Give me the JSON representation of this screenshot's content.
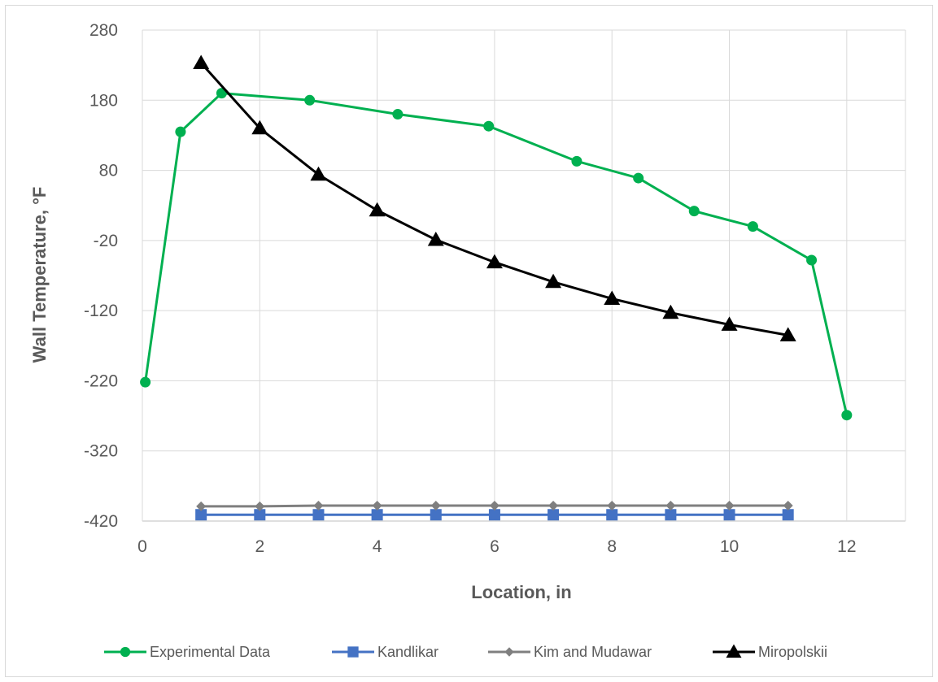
{
  "chart_data": {
    "type": "line",
    "title": "",
    "xlabel": "Location, in",
    "ylabel": "Wall Temperature, °F",
    "xlim": [
      0,
      13
    ],
    "ylim": [
      -420,
      280
    ],
    "x_ticks": [
      0,
      2,
      4,
      6,
      8,
      10,
      12
    ],
    "y_ticks": [
      -420,
      -320,
      -220,
      -120,
      -20,
      80,
      180,
      280
    ],
    "grid": true,
    "legend_position": "bottom",
    "series": [
      {
        "name": "Experimental Data",
        "color": "#00b050",
        "marker": "circle",
        "x": [
          0.05,
          0.65,
          1.35,
          2.85,
          4.35,
          5.9,
          7.4,
          8.45,
          9.4,
          10.4,
          11.4,
          12.0
        ],
        "y": [
          -222,
          135,
          190,
          180,
          160,
          143,
          93,
          69,
          22,
          0,
          -48,
          -269
        ]
      },
      {
        "name": "Kandlikar",
        "color": "#4472c4",
        "marker": "square",
        "x": [
          1,
          2,
          3,
          4,
          5,
          6,
          7,
          8,
          9,
          10,
          11
        ],
        "y": [
          -411,
          -411,
          -411,
          -411,
          -411,
          -411,
          -411,
          -411,
          -411,
          -411,
          -411
        ]
      },
      {
        "name": "Kim and Mudawar",
        "color": "#7f7f7f",
        "marker": "diamond",
        "x": [
          1,
          2,
          3,
          4,
          5,
          6,
          7,
          8,
          9,
          10,
          11
        ],
        "y": [
          -399,
          -399,
          -398,
          -398,
          -398,
          -398,
          -398,
          -398,
          -398,
          -398,
          -398
        ]
      },
      {
        "name": "Miropolskii",
        "color": "#000000",
        "marker": "triangle",
        "x": [
          1,
          2,
          3,
          4,
          5,
          6,
          7,
          8,
          9,
          10,
          11
        ],
        "y": [
          233,
          140,
          74,
          23,
          -19,
          -51,
          -79,
          -103,
          -123,
          -140,
          -155
        ]
      }
    ]
  }
}
